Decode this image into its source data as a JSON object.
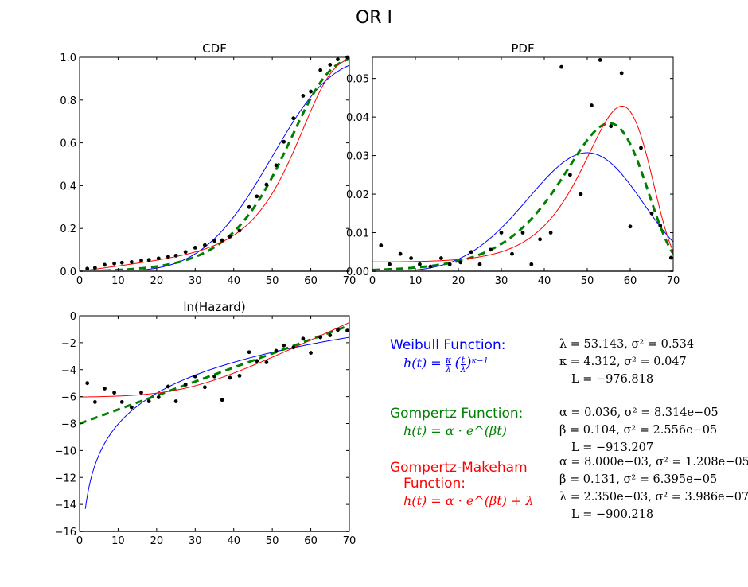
{
  "title": "OR I",
  "colors": {
    "weibull": "#0000ff",
    "gompertz": "#008000",
    "makeham": "#ff0000",
    "data": "#000000"
  },
  "legend": {
    "weibull": {
      "title": "Weibull Function:",
      "formula_lhs": "h(t) =",
      "formula_rhs": "κ/λ (t/λ)^(κ−1)",
      "params": [
        "λ = 53.143, σ² = 0.534",
        "κ = 4.312, σ² = 0.047",
        "L = −976.818"
      ]
    },
    "gompertz": {
      "title": "Gompertz Function:",
      "formula": "h(t) = α · e^(βt)",
      "params": [
        "α = 0.036, σ² = 8.314e−05",
        "β = 0.104, σ² = 2.556e−05",
        "L = −913.207"
      ]
    },
    "makeham": {
      "title_line1": "Gompertz-Makeham",
      "title_line2": "Function:",
      "formula": "h(t) = α · e^(βt) + λ",
      "params": [
        "α = 8.000e−03, σ² = 1.208e−05",
        "β = 0.131, σ² = 6.395e−05",
        "λ = 2.350e−03, σ² = 3.986e−07",
        "L = −900.218"
      ]
    }
  },
  "chart_data": [
    {
      "type": "line",
      "title": "CDF",
      "xlabel": "",
      "ylabel": "",
      "xlim": [
        0,
        70
      ],
      "ylim": [
        0,
        1.0
      ],
      "xticks": [
        0,
        10,
        20,
        30,
        40,
        50,
        60,
        70
      ],
      "yticks": [
        0.0,
        0.2,
        0.4,
        0.6,
        0.8,
        1.0
      ],
      "ytick_labels": [
        "0.0",
        "0.2",
        "0.4",
        "0.6",
        "0.8",
        "1.0"
      ],
      "grid": false,
      "scatter": {
        "x": [
          2,
          4,
          6.5,
          9,
          11,
          13.5,
          16,
          18,
          20.5,
          23,
          25,
          27.5,
          30,
          32.5,
          35,
          37,
          39,
          41.5,
          44,
          46,
          48.5,
          51,
          53,
          55.5,
          58,
          60,
          62.5,
          65,
          67,
          69.5
        ],
        "y": [
          0.012,
          0.016,
          0.03,
          0.036,
          0.04,
          0.043,
          0.05,
          0.053,
          0.06,
          0.068,
          0.073,
          0.09,
          0.11,
          0.122,
          0.142,
          0.145,
          0.162,
          0.19,
          0.3,
          0.35,
          0.405,
          0.495,
          0.605,
          0.715,
          0.82,
          0.84,
          0.94,
          0.965,
          0.99,
          1.0
        ]
      },
      "series": [
        {
          "name": "Weibull",
          "model": "weibull_cdf"
        },
        {
          "name": "Gompertz",
          "model": "gompertz_cdf",
          "style": "dashed"
        },
        {
          "name": "Gompertz-Makeham",
          "model": "makeham_cdf"
        }
      ]
    },
    {
      "type": "line",
      "title": "PDF",
      "xlabel": "",
      "ylabel": "",
      "xlim": [
        0,
        70
      ],
      "ylim": [
        0,
        0.0555
      ],
      "xticks": [
        0,
        10,
        20,
        30,
        40,
        50,
        60,
        70
      ],
      "yticks": [
        0.0,
        0.01,
        0.02,
        0.03,
        0.04,
        0.05
      ],
      "ytick_labels": [
        "0.00",
        "0.01",
        "0.02",
        "0.03",
        "0.04",
        "0.05"
      ],
      "grid": false,
      "scatter": {
        "x": [
          2,
          4,
          6.5,
          9,
          11,
          13.5,
          16,
          18,
          20.5,
          23,
          25,
          27.5,
          30,
          32.5,
          35,
          37,
          39,
          41.5,
          44,
          46,
          48.5,
          51,
          53,
          55.5,
          58,
          60,
          62.5,
          65,
          67,
          69.5
        ],
        "y": [
          0.0067,
          0.0018,
          0.0045,
          0.0034,
          0.0018,
          0.0012,
          0.0034,
          0.0018,
          0.0023,
          0.005,
          0.0018,
          0.0056,
          0.01,
          0.0045,
          0.01,
          0.0018,
          0.0083,
          0.01,
          0.053,
          0.025,
          0.02,
          0.043,
          0.0548,
          0.0376,
          0.0514,
          0.0116,
          0.032,
          0.015,
          0.0118,
          0.0035
        ]
      },
      "series": [
        {
          "name": "Weibull",
          "model": "weibull_pdf"
        },
        {
          "name": "Gompertz",
          "model": "gompertz_pdf",
          "style": "dashed"
        },
        {
          "name": "Gompertz-Makeham",
          "model": "makeham_pdf"
        }
      ]
    },
    {
      "type": "line",
      "title": "ln(Hazard)",
      "xlabel": "",
      "ylabel": "",
      "xlim": [
        0,
        70
      ],
      "ylim": [
        -16,
        0
      ],
      "xticks": [
        0,
        10,
        20,
        30,
        40,
        50,
        60,
        70
      ],
      "yticks": [
        0,
        -2,
        -4,
        -6,
        -8,
        -10,
        -12,
        -14,
        -16
      ],
      "ytick_labels": [
        "0",
        "−2",
        "−4",
        "−6",
        "−8",
        "−10",
        "−12",
        "−14",
        "−16"
      ],
      "grid": false,
      "scatter": {
        "x": [
          2,
          4,
          6.5,
          9,
          11,
          13.5,
          16,
          18,
          20.5,
          23,
          25,
          27.5,
          30,
          32.5,
          35,
          37,
          39,
          41.5,
          44,
          46,
          48.5,
          51,
          53,
          55.5,
          58,
          60,
          62.5,
          65,
          67,
          69.5
        ],
        "y": [
          -5.0,
          -6.4,
          -5.4,
          -5.7,
          -6.4,
          -6.8,
          -5.7,
          -6.35,
          -6.05,
          -5.25,
          -6.35,
          -5.1,
          -4.5,
          -5.3,
          -4.5,
          -6.25,
          -4.6,
          -4.45,
          -2.7,
          -3.35,
          -3.45,
          -2.6,
          -2.2,
          -2.35,
          -1.7,
          -2.75,
          -1.6,
          -1.45,
          -1.05,
          -1.1
        ]
      },
      "series": [
        {
          "name": "Weibull",
          "model": "weibull_lnh"
        },
        {
          "name": "Gompertz",
          "model": "gompertz_lnh",
          "style": "dashed"
        },
        {
          "name": "Gompertz-Makeham",
          "model": "makeham_lnh"
        }
      ]
    }
  ],
  "model_params": {
    "weibull": {
      "lambda": 53.143,
      "kappa": 4.312
    },
    "gompertz": {
      "alpha": 0.036,
      "beta": 0.104
    },
    "makeham": {
      "alpha": 0.008,
      "beta": 0.131,
      "lambda": 0.00235
    }
  }
}
